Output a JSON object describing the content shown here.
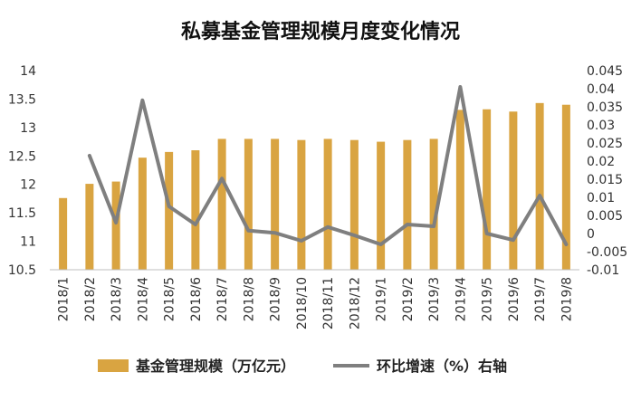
{
  "chart_data": {
    "type": "bar",
    "title": "私募基金管理规模月度变化情况",
    "categories": [
      "2018/1",
      "2018/2",
      "2018/3",
      "2018/4",
      "2018/5",
      "2018/6",
      "2018/7",
      "2018/8",
      "2018/9",
      "2018/10",
      "2018/11",
      "2018/12",
      "2019/1",
      "2019/2",
      "2019/3",
      "2019/4",
      "2019/5",
      "2019/6",
      "2019/7",
      "2019/8"
    ],
    "series": [
      {
        "name": "基金管理规模（万亿元）",
        "type": "bar",
        "axis": "left",
        "color": "#D9A441",
        "values": [
          11.76,
          12.01,
          12.05,
          12.47,
          12.57,
          12.6,
          12.8,
          12.8,
          12.8,
          12.78,
          12.8,
          12.78,
          12.75,
          12.78,
          12.8,
          13.31,
          13.32,
          13.28,
          13.43,
          13.4
        ]
      },
      {
        "name": "环比增速（%）右轴",
        "type": "line",
        "axis": "right",
        "color": "#7F7F7F",
        "values": [
          null,
          0.0215,
          0.003,
          0.0368,
          0.0075,
          0.0025,
          0.0152,
          0.0008,
          0.0002,
          -0.002,
          0.0018,
          -0.0005,
          -0.003,
          0.0025,
          0.002,
          0.0405,
          0.0,
          -0.0018,
          0.0105,
          -0.003
        ]
      }
    ],
    "y_left": {
      "min": 10.5,
      "max": 14,
      "ticks": [
        "10.5",
        "11",
        "11.5",
        "12",
        "12.5",
        "13",
        "13.5",
        "14"
      ]
    },
    "y_right": {
      "min": -0.01,
      "max": 0.045,
      "ticks": [
        "-0.01",
        "-0.005",
        "0",
        "0.005",
        "0.01",
        "0.015",
        "0.02",
        "0.025",
        "0.03",
        "0.035",
        "0.04",
        "0.045"
      ]
    },
    "grid": false,
    "legend": "bottom"
  }
}
